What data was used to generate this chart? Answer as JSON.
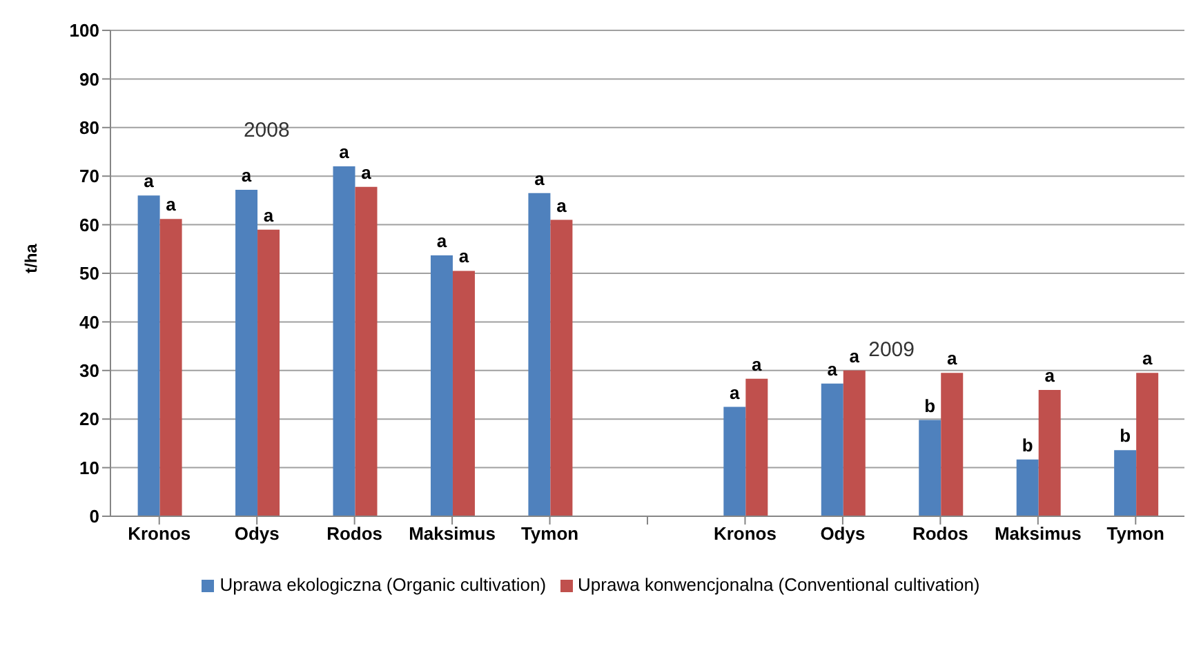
{
  "chart_data": {
    "type": "bar",
    "ylabel": "t/ha",
    "categories": [
      "Kronos",
      "Odys",
      "Rodos",
      "Maksimus",
      "Tymon",
      null,
      "Kronos",
      "Odys",
      "Rodos",
      "Maksimus",
      "Tymon"
    ],
    "series": [
      {
        "name": "Uprawa ekologiczna (Organic cultivation)",
        "color": "#4f81bd",
        "values": [
          66,
          67.2,
          72,
          53.7,
          66.5,
          null,
          22.5,
          27.3,
          19.8,
          11.7,
          13.6
        ],
        "value_labels": [
          "a",
          "a",
          "a",
          "a",
          "a",
          null,
          "a",
          "a",
          "b",
          "b",
          "b"
        ]
      },
      {
        "name": "Uprawa konwencjonalna (Conventional cultivation)",
        "color": "#c0504d",
        "values": [
          61.2,
          59,
          67.8,
          50.5,
          61,
          null,
          28.3,
          30,
          29.5,
          26,
          29.5
        ],
        "value_labels": [
          "a",
          "a",
          "a",
          "a",
          "a",
          null,
          "a",
          "a",
          "a",
          "a",
          "a"
        ]
      }
    ],
    "annotations": [
      "2008",
      "2009"
    ],
    "ylim": [
      0,
      100
    ],
    "yticks": [
      0,
      10,
      20,
      30,
      40,
      50,
      60,
      70,
      80,
      90,
      100
    ],
    "grid": "y",
    "legend": "bottom"
  }
}
